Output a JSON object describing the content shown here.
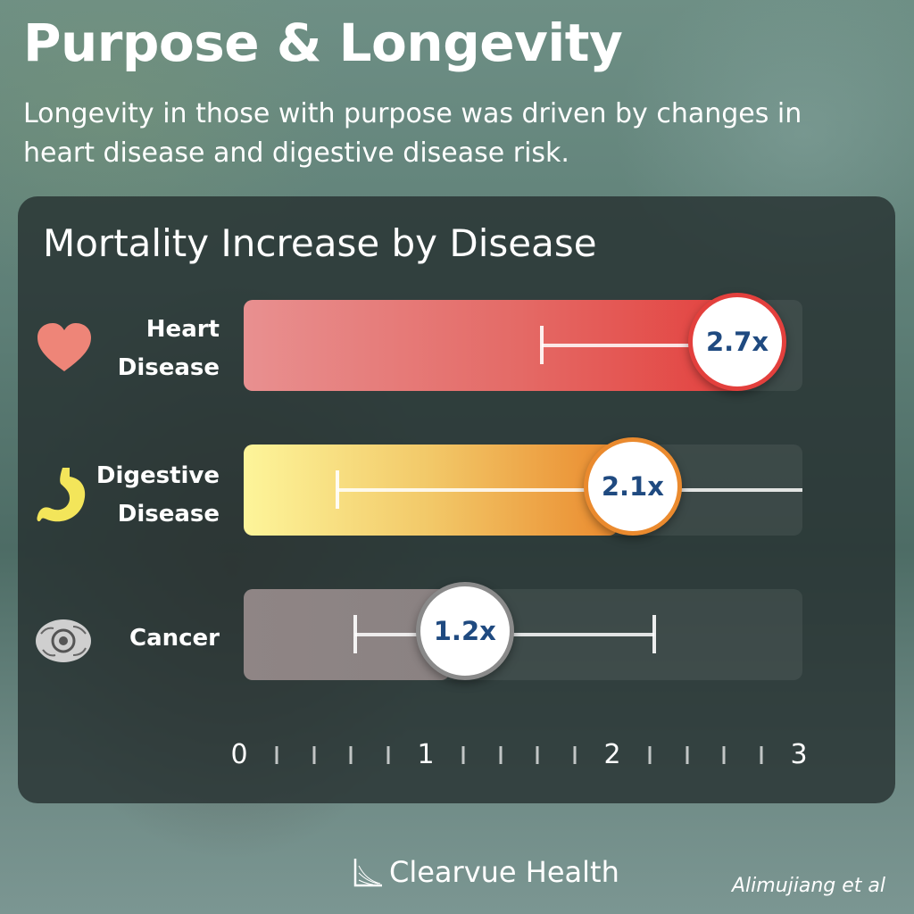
{
  "title": "Purpose & Longevity",
  "subtitle": "Longevity in those with purpose was driven by changes in heart disease and digestive disease risk.",
  "brand": "Clearvue Health",
  "credit": "Alimujiang et al",
  "colors": {
    "heart": "#e3403d",
    "digestive": "#ea8a2e",
    "cancer": "#8a8a8a",
    "value_text": "#1f4a80"
  },
  "chart_data": {
    "type": "bar",
    "title": "Mortality Increase by Disease",
    "xlim": [
      0,
      3
    ],
    "x_ticks": [
      "0",
      "1",
      "2",
      "3"
    ],
    "rows": [
      {
        "label_line1": "Heart",
        "label_line2": "Disease",
        "icon": "heart-icon",
        "value": 2.7,
        "value_label": "2.7x",
        "ci": [
          1.6,
          2.7
        ]
      },
      {
        "label_line1": "Digestive",
        "label_line2": "Disease",
        "icon": "stomach-icon",
        "value": 2.1,
        "value_label": "2.1x",
        "ci": [
          0.5,
          3.0
        ]
      },
      {
        "label_line1": "Cancer",
        "label_line2": "",
        "icon": "cell-icon",
        "value": 1.2,
        "value_label": "1.2x",
        "ci": [
          0.6,
          2.2
        ]
      }
    ]
  }
}
